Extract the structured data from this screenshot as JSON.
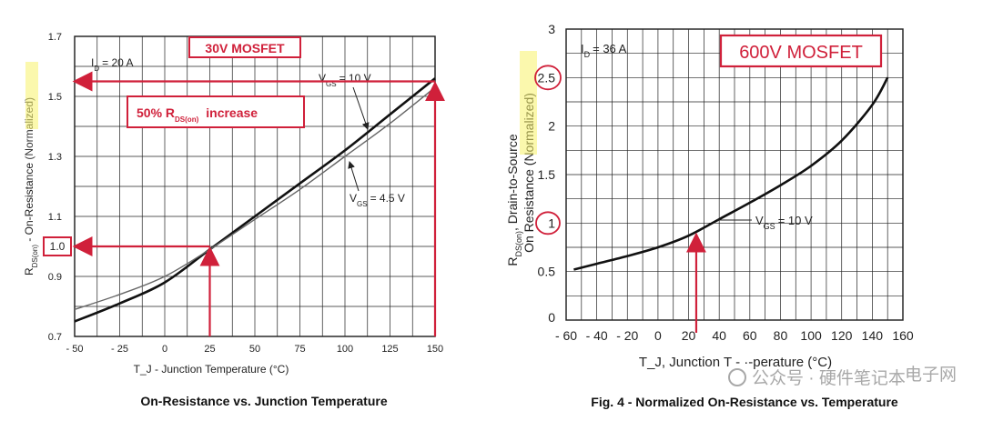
{
  "chart_data": [
    {
      "type": "line",
      "title": "On-Resistance vs. Junction Temperature",
      "xlabel": "T_J - Junction Temperature (°C)",
      "ylabel": "R_DS(on) - On-Resistance (Normalized)",
      "xlim": [
        -50,
        150
      ],
      "ylim": [
        0.7,
        1.7
      ],
      "xticks": [
        -50,
        -25,
        0,
        25,
        50,
        75,
        100,
        125,
        150
      ],
      "xtick_labels": [
        "- 50",
        "- 25",
        "0",
        "25",
        "50",
        "75",
        "100",
        "125",
        "150"
      ],
      "yticks": [
        0.7,
        0.9,
        1.1,
        1.3,
        1.5,
        1.7
      ],
      "ytick_labels": [
        "0.7",
        "0.9",
        "1.1",
        "1.3",
        "1.5",
        "1.7"
      ],
      "grid": true,
      "annotations": {
        "id_label": "I",
        "id_sub": "D",
        "id_value": "= 20 A",
        "box_title": "30V MOSFET",
        "box_increase_pre": "50% R",
        "box_increase_sub": "DS(on)",
        "box_increase_post": "increase",
        "highlight_value": "1.0",
        "vgs_hi_v": "V",
        "vgs_hi_sub": "GS",
        "vgs_hi_val": "= 10 V",
        "vgs_lo_v": "V",
        "vgs_lo_sub": "GS",
        "vgs_lo_val": "= 4.5 V"
      },
      "series": [
        {
          "name": "VGS = 10 V",
          "x": [
            -50,
            -25,
            0,
            25,
            50,
            75,
            100,
            125,
            150
          ],
          "y": [
            0.75,
            0.81,
            0.88,
            0.99,
            1.1,
            1.21,
            1.32,
            1.44,
            1.56
          ]
        },
        {
          "name": "VGS = 4.5 V",
          "x": [
            -50,
            -25,
            0,
            25,
            50,
            75,
            100,
            125,
            150
          ],
          "y": [
            0.79,
            0.84,
            0.9,
            0.99,
            1.09,
            1.19,
            1.3,
            1.41,
            1.53
          ]
        }
      ]
    },
    {
      "type": "line",
      "title": "Fig. 4 - Normalized On-Resistance vs. Temperature",
      "xlabel": "T_J, Junction T - ·-perature (°C)",
      "ylabel": "R_DS(on), Drain-to-Source On Resistance (Normalized)",
      "xlim": [
        -60,
        160
      ],
      "ylim": [
        0.0,
        3.0
      ],
      "xticks": [
        -60,
        -40,
        -20,
        0,
        20,
        40,
        60,
        80,
        100,
        120,
        140,
        160
      ],
      "xtick_labels": [
        "- 60",
        "- 40",
        "- 20",
        "0",
        "20",
        "40",
        "60",
        "80",
        "100",
        "120",
        "140",
        "160"
      ],
      "yticks": [
        0.5,
        1.0,
        1.5,
        2.0,
        2.5,
        3.0
      ],
      "ytick_labels": [
        "0.5",
        "1",
        "1.5",
        "2",
        "2.5",
        "3"
      ],
      "bottom_label": "0",
      "grid": true,
      "annotations": {
        "id_label": "I",
        "id_sub": "D",
        "id_value": "= 36 A",
        "box_title": "600V MOSFET",
        "vgs_v": "V",
        "vgs_sub": "GS",
        "vgs_val": "= 10 V"
      },
      "series": [
        {
          "name": "VGS = 10 V",
          "x": [
            -55,
            -40,
            -20,
            0,
            20,
            40,
            60,
            80,
            100,
            120,
            140,
            150
          ],
          "y": [
            0.52,
            0.58,
            0.66,
            0.75,
            0.87,
            1.04,
            1.21,
            1.39,
            1.59,
            1.85,
            2.22,
            2.5
          ]
        }
      ]
    }
  ],
  "watermark": {
    "text": "公众号 · 硬件笔记本",
    "brand": "电子网"
  }
}
